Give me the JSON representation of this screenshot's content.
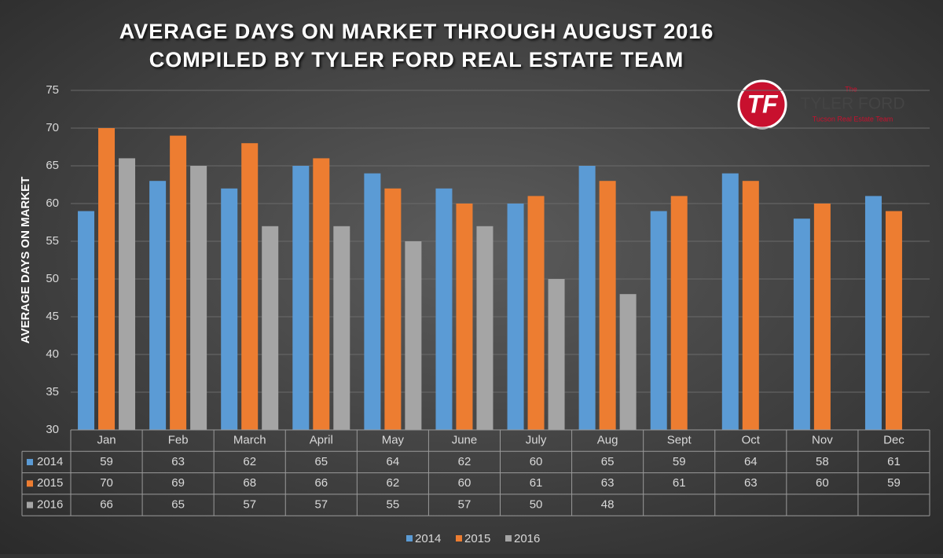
{
  "chart_data": {
    "type": "bar",
    "title": "AVERAGE DAYS ON MARKET THROUGH AUGUST 2016",
    "subtitle": "COMPILED BY TYLER FORD REAL ESTATE TEAM",
    "y_label": "AVERAGE DAYS ON MARKET",
    "categories": [
      "Jan",
      "Feb",
      "March",
      "April",
      "May",
      "June",
      "July",
      "Aug",
      "Sept",
      "Oct",
      "Nov",
      "Dec"
    ],
    "series": [
      {
        "name": "2014",
        "color": "#5b9bd5",
        "values": [
          59,
          63,
          62,
          65,
          64,
          62,
          60,
          65,
          59,
          64,
          58,
          61
        ]
      },
      {
        "name": "2015",
        "color": "#ed7d31",
        "values": [
          70,
          69,
          68,
          66,
          62,
          60,
          61,
          63,
          61,
          63,
          60,
          59
        ]
      },
      {
        "name": "2016",
        "color": "#a5a5a5",
        "values": [
          66,
          65,
          57,
          57,
          55,
          57,
          50,
          48,
          null,
          null,
          null,
          null
        ]
      }
    ],
    "ylim": [
      30,
      75
    ],
    "yticks": [
      30,
      35,
      40,
      45,
      50,
      55,
      60,
      65,
      70,
      75
    ],
    "grid": true,
    "legend": "bottom",
    "logo": {
      "mark": "TF",
      "small": "The",
      "name": "TYLER FORD",
      "tagline": "Tucson Real Estate Team"
    }
  }
}
